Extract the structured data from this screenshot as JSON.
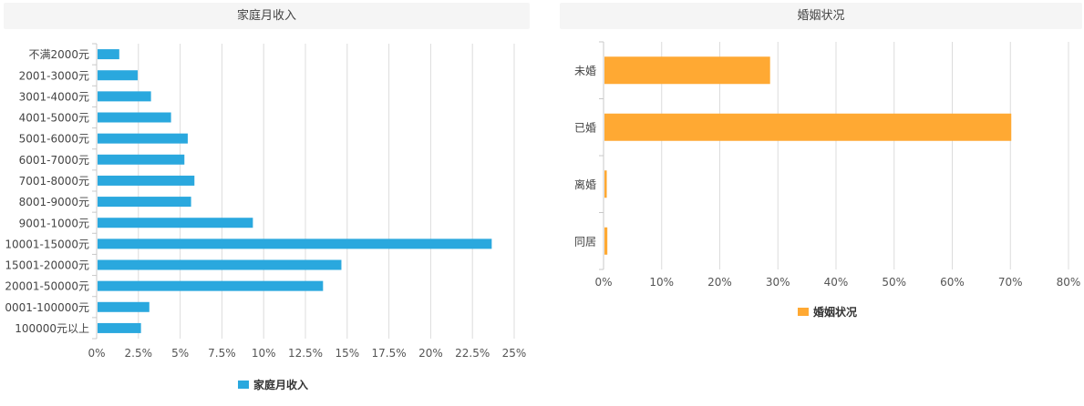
{
  "charts": {
    "income": {
      "header": "家庭月收入",
      "legend_label": "家庭月收入",
      "color": "#2aa8de"
    },
    "marital": {
      "header": "婚姻状况",
      "legend_label": "婚姻状况",
      "color": "#ffa933"
    }
  },
  "chart_data": [
    {
      "type": "bar",
      "orientation": "horizontal",
      "title": "家庭月收入",
      "categories": [
        "不满2000元",
        "2001-3000元",
        "3001-4000元",
        "4001-5000元",
        "5001-6000元",
        "6001-7000元",
        "7001-8000元",
        "8001-9000元",
        "9001-1000元",
        "10001-15000元",
        "15001-20000元",
        "20001-50000元",
        "0001-100000元",
        "100000元以上"
      ],
      "series": [
        {
          "name": "家庭月收入",
          "values": [
            1.3,
            2.4,
            3.2,
            4.4,
            5.4,
            5.2,
            5.8,
            5.6,
            9.3,
            23.6,
            14.6,
            13.5,
            3.1,
            2.6
          ]
        }
      ],
      "xlim": [
        0,
        25
      ],
      "x_ticks": [
        "0%",
        "2.5%",
        "5%",
        "7.5%",
        "10%",
        "12.5%",
        "15%",
        "17.5%",
        "20%",
        "22.5%",
        "25%"
      ],
      "x_tick_values": [
        0,
        2.5,
        5,
        7.5,
        10,
        12.5,
        15,
        17.5,
        20,
        22.5,
        25
      ],
      "grid": true,
      "legend_position": "bottom"
    },
    {
      "type": "bar",
      "orientation": "horizontal",
      "title": "婚姻状况",
      "categories": [
        "未婚",
        "已婚",
        "离婚",
        "同居"
      ],
      "series": [
        {
          "name": "婚姻状况",
          "values": [
            28.5,
            70.0,
            0.4,
            0.5
          ]
        }
      ],
      "xlim": [
        0,
        80
      ],
      "x_ticks": [
        "0%",
        "10%",
        "20%",
        "30%",
        "40%",
        "50%",
        "60%",
        "70%",
        "80%"
      ],
      "x_tick_values": [
        0,
        10,
        20,
        30,
        40,
        50,
        60,
        70,
        80
      ],
      "grid": true,
      "legend_position": "bottom"
    }
  ]
}
